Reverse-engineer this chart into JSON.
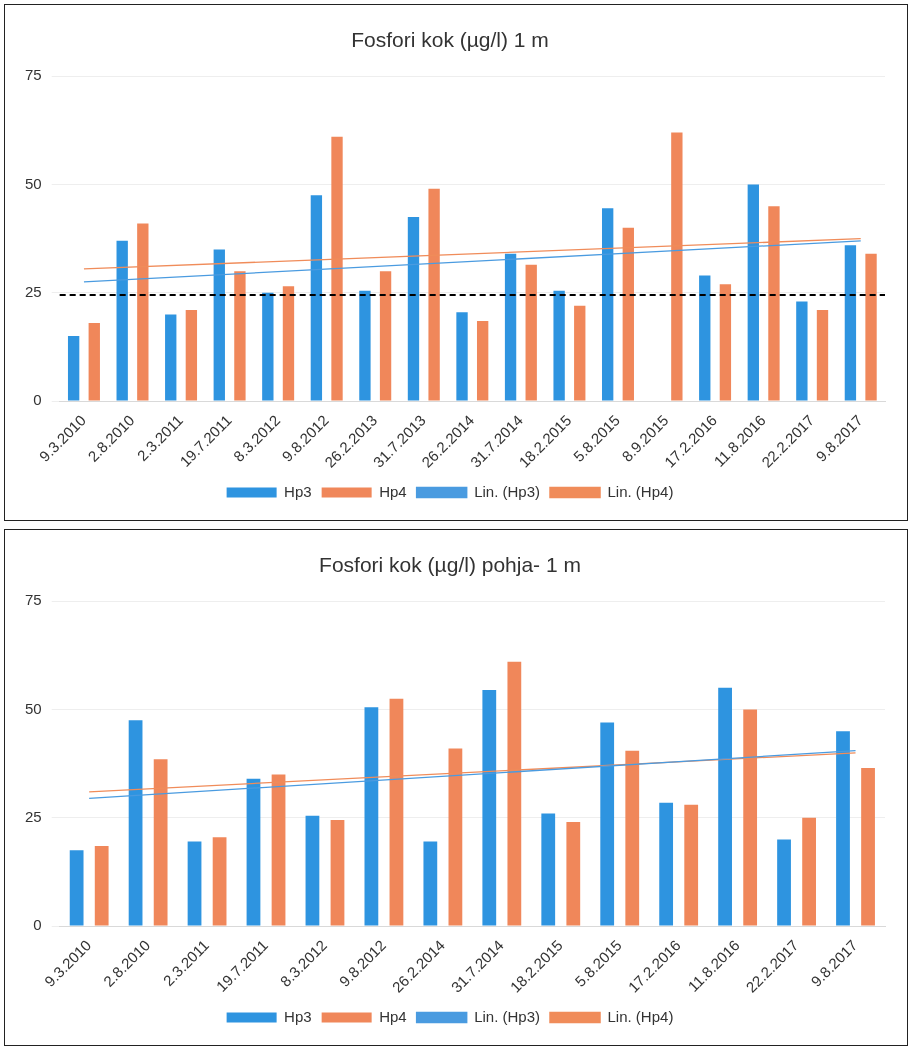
{
  "chart_data": [
    {
      "type": "bar",
      "title": "Fosfori kok (µg/l) 1 m",
      "categories": [
        "9.3.2010",
        "2.8.2010",
        "2.3.2011",
        "19.7.2011",
        "8.3.2012",
        "9.8.2012",
        "26.2.2013",
        "31.7.2013",
        "26.2.2014",
        "31.7.2014",
        "18.2.2015",
        "5.8.2015",
        "8.9.2015",
        "17.2.2016",
        "11.8.2016",
        "22.2.2017",
        "9.8.2017"
      ],
      "series": [
        {
          "name": "Hp3",
          "color": "#2e94e0",
          "values": [
            15,
            37,
            20,
            35,
            25,
            47.5,
            25.5,
            42.5,
            20.5,
            34,
            25.5,
            44.5,
            null,
            29,
            50,
            23,
            36
          ]
        },
        {
          "name": "Hp4",
          "color": "#f0875a",
          "values": [
            18,
            41,
            21,
            30,
            26.5,
            61,
            30,
            49,
            18.5,
            31.5,
            22,
            40,
            62,
            27,
            45,
            21,
            34
          ]
        },
        {
          "name": "Lin. (Hp3)",
          "type": "line",
          "color": "#4a9be0",
          "x": [
            "9.3.2010",
            "9.8.2017"
          ],
          "values": [
            27.5,
            37
          ]
        },
        {
          "name": "Lin. (Hp4)",
          "type": "line",
          "color": "#f08c5a",
          "x": [
            "9.3.2010",
            "9.8.2017"
          ],
          "values": [
            30.5,
            37.5
          ]
        }
      ],
      "ref_lines": [
        {
          "axis": "y",
          "value": 24.5,
          "color": "#000000",
          "line_style": "dashed"
        }
      ],
      "ylim": [
        0,
        75
      ],
      "yticks": [
        0,
        25,
        50,
        75
      ],
      "grid": "y",
      "legend": "bottom",
      "marker": "none"
    },
    {
      "type": "bar",
      "title": "Fosfori kok (µg/l) pohja- 1 m",
      "categories": [
        "9.3.2010",
        "2.8.2010",
        "2.3.2011",
        "19.7.2011",
        "8.3.2012",
        "9.8.2012",
        "26.2.2014",
        "31.7.2014",
        "18.2.2015",
        "5.8.2015",
        "17.2.2016",
        "11.8.2016",
        "22.2.2017",
        "9.8.2017"
      ],
      "series": [
        {
          "name": "Hp3",
          "color": "#2e94e0",
          "values": [
            17.5,
            47.5,
            19.5,
            34,
            25.5,
            50.5,
            19.5,
            54.5,
            26,
            47,
            28.5,
            55,
            20,
            45
          ]
        },
        {
          "name": "Hp4",
          "color": "#f0875a",
          "values": [
            18.5,
            38.5,
            20.5,
            35,
            24.5,
            52.5,
            41,
            61,
            24,
            40.5,
            28,
            50,
            25,
            36.5
          ]
        },
        {
          "name": "Lin. (Hp3)",
          "type": "line",
          "color": "#4a9be0",
          "x": [
            "9.3.2010",
            "9.8.2017"
          ],
          "values": [
            29.5,
            40.5
          ]
        },
        {
          "name": "Lin. (Hp4)",
          "type": "line",
          "color": "#f08c5a",
          "x": [
            "9.3.2010",
            "9.8.2017"
          ],
          "values": [
            31,
            40
          ]
        }
      ],
      "ylim": [
        0,
        75
      ],
      "yticks": [
        0,
        25,
        50,
        75
      ],
      "grid": "y",
      "legend": "bottom",
      "marker": "none"
    }
  ]
}
